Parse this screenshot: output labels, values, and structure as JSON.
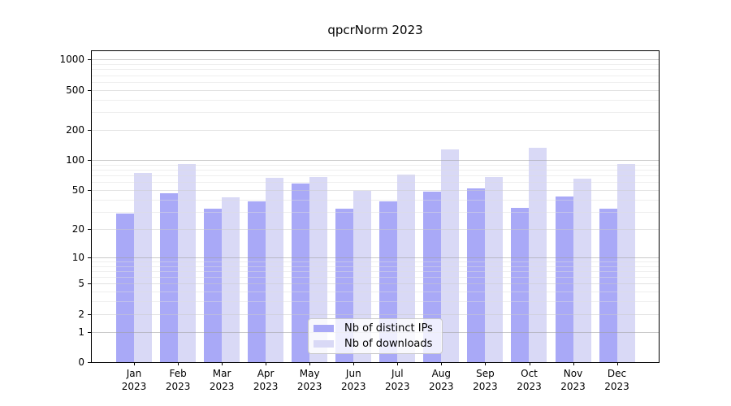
{
  "chart_data": {
    "type": "bar",
    "title": "qpcrNorm 2023",
    "year_label": "2023",
    "months": [
      "Jan",
      "Feb",
      "Mar",
      "Apr",
      "May",
      "Jun",
      "Jul",
      "Aug",
      "Sep",
      "Oct",
      "Nov",
      "Dec"
    ],
    "categories": [
      "Jan 2023",
      "Feb 2023",
      "Mar 2023",
      "Apr 2023",
      "May 2023",
      "Jun 2023",
      "Jul 2023",
      "Aug 2023",
      "Sep 2023",
      "Oct 2023",
      "Nov 2023",
      "Dec 2023"
    ],
    "series": [
      {
        "name": "Nb of distinct IPs",
        "color": "#a9a9f7",
        "values": [
          29,
          46,
          32,
          38,
          58,
          32,
          38,
          48,
          52,
          33,
          43,
          32
        ]
      },
      {
        "name": "Nb of downloads",
        "color": "#d9d9f6",
        "values": [
          74,
          91,
          42,
          66,
          67,
          49,
          72,
          128,
          68,
          133,
          65,
          92
        ]
      }
    ],
    "yscale": "log1p",
    "yticks": [
      0,
      1,
      2,
      5,
      10,
      20,
      50,
      100,
      200,
      500,
      1000
    ],
    "minor_gridlines": [
      3,
      4,
      6,
      7,
      8,
      9,
      30,
      40,
      60,
      70,
      80,
      90,
      300,
      400,
      600,
      700,
      800,
      900
    ],
    "ylim": [
      0,
      1230
    ],
    "grid": true,
    "legend_position": "lower center-right inside plot"
  },
  "colors": {
    "background": "#ffffff",
    "axis": "#000000",
    "grid_power10": "#c4c4c4",
    "grid_major": "#e2e2e2",
    "grid_minor": "#efefef",
    "bar_ips": "#a9a9f7",
    "bar_downloads": "#d9d9f6",
    "legend_border": "#c9c9c9"
  }
}
